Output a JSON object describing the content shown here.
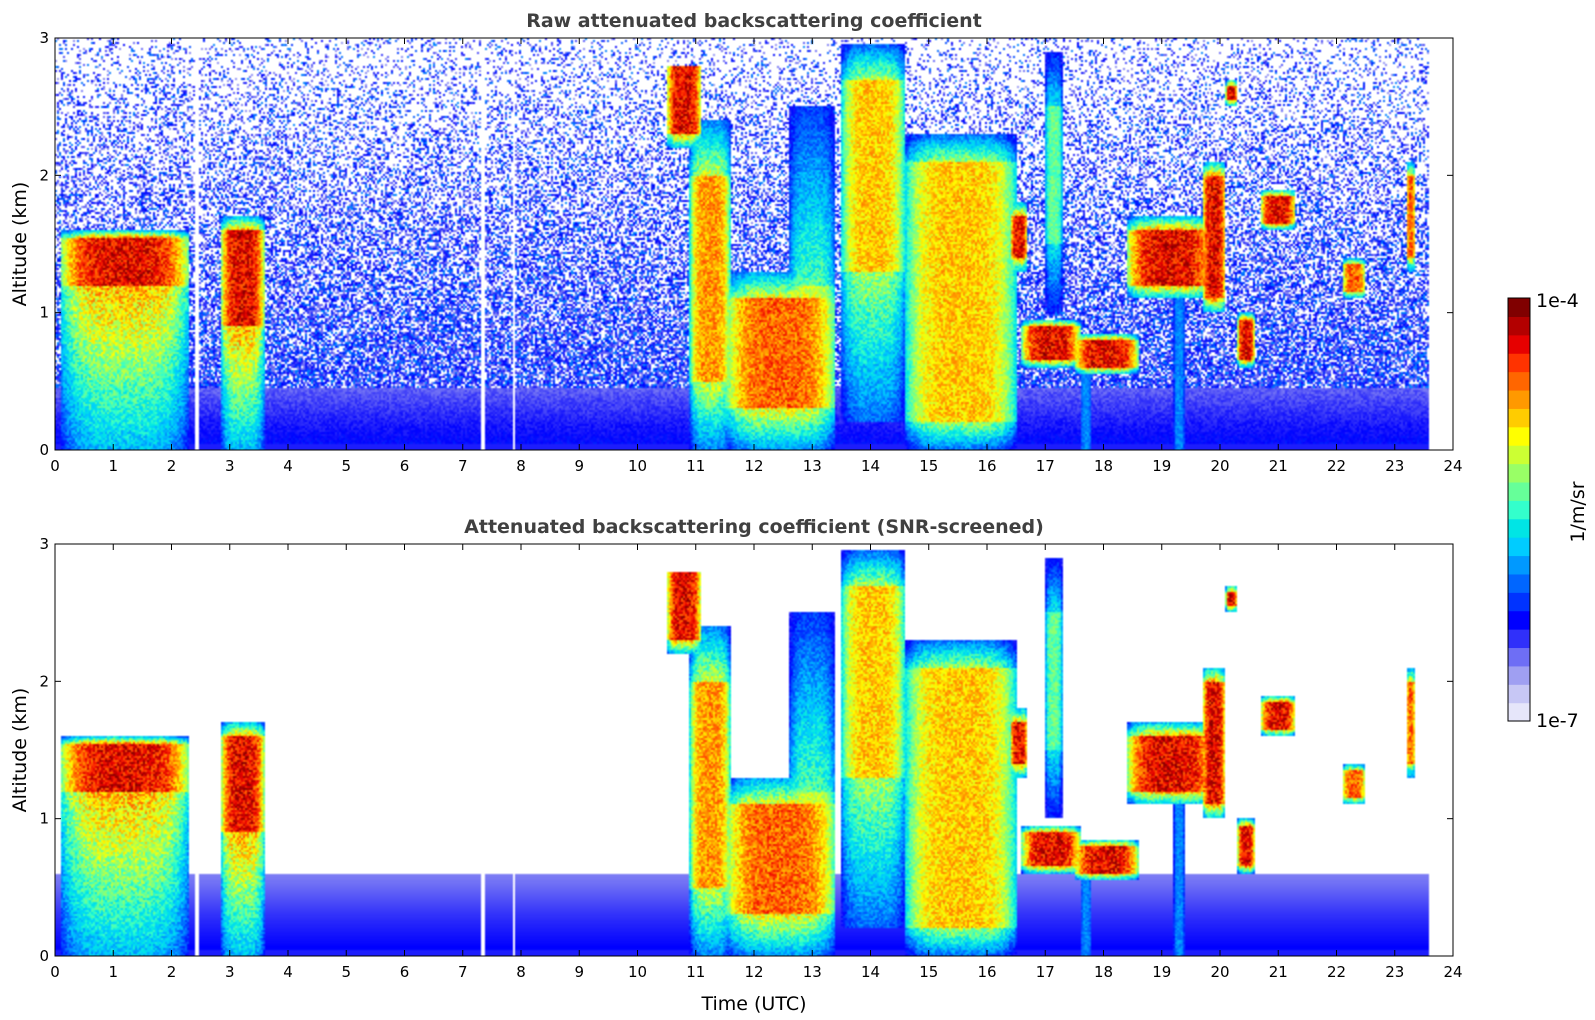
{
  "chart_data": [
    {
      "type": "heatmap",
      "title": "Raw attenuated backscattering coefficient",
      "xlabel": "",
      "ylabel": "Altitude (km)",
      "xlim": [
        0,
        24
      ],
      "ylim": [
        0,
        3
      ],
      "x_ticks": [
        "0",
        "1",
        "2",
        "3",
        "4",
        "5",
        "6",
        "7",
        "8",
        "9",
        "10",
        "11",
        "12",
        "13",
        "14",
        "15",
        "16",
        "17",
        "18",
        "19",
        "20",
        "21",
        "22",
        "23",
        "24"
      ],
      "y_ticks": [
        "0",
        "1",
        "2",
        "3"
      ],
      "data_end_hour": 23.6,
      "gap_hours": [
        2.45,
        7.35,
        7.88
      ],
      "background": "noise",
      "features": [
        {
          "x0": 0.1,
          "x1": 2.3,
          "y0": 0.0,
          "y1": 1.6,
          "core": [
            1.2,
            1.55
          ],
          "level": 1.0
        },
        {
          "x0": 2.85,
          "x1": 3.6,
          "y0": 0.0,
          "y1": 1.7,
          "core": [
            0.9,
            1.6
          ],
          "level": 1.0
        },
        {
          "x0": 10.5,
          "x1": 11.1,
          "y0": 2.2,
          "y1": 2.8,
          "core": [
            2.3,
            2.8
          ],
          "level": 1.0
        },
        {
          "x0": 10.9,
          "x1": 11.6,
          "y0": 0.0,
          "y1": 2.4,
          "core": [
            0.5,
            2.0
          ],
          "level": 0.85
        },
        {
          "x0": 11.5,
          "x1": 13.4,
          "y0": 0.0,
          "y1": 1.3,
          "core": [
            0.3,
            1.1
          ],
          "level": 0.9
        },
        {
          "x0": 12.6,
          "x1": 13.4,
          "y0": 0.0,
          "y1": 2.5,
          "core": [
            0.4,
            1.2
          ],
          "level": 0.7
        },
        {
          "x0": 13.5,
          "x1": 14.6,
          "y0": 0.2,
          "y1": 2.95,
          "core": [
            1.3,
            2.7
          ],
          "level": 0.8
        },
        {
          "x0": 14.6,
          "x1": 16.5,
          "y0": 0.0,
          "y1": 2.3,
          "core": [
            0.2,
            2.1
          ],
          "level": 0.8
        },
        {
          "x0": 16.4,
          "x1": 16.7,
          "y0": 1.3,
          "y1": 1.8,
          "core": [
            1.4,
            1.7
          ],
          "level": 1.0
        },
        {
          "x0": 16.6,
          "x1": 17.6,
          "y0": 0.6,
          "y1": 0.95,
          "core": [
            0.65,
            0.9
          ],
          "level": 1.0
        },
        {
          "x0": 17.5,
          "x1": 18.6,
          "y0": 0.55,
          "y1": 0.85,
          "core": [
            0.6,
            0.8
          ],
          "level": 1.0
        },
        {
          "x0": 18.4,
          "x1": 19.9,
          "y0": 1.1,
          "y1": 1.7,
          "core": [
            1.2,
            1.6
          ],
          "level": 1.0
        },
        {
          "x0": 19.7,
          "x1": 20.1,
          "y0": 1.0,
          "y1": 2.1,
          "core": [
            1.1,
            2.0
          ],
          "level": 1.0
        },
        {
          "x0": 20.3,
          "x1": 20.6,
          "y0": 0.6,
          "y1": 1.0,
          "core": [
            0.65,
            0.95
          ],
          "level": 1.0
        },
        {
          "x0": 20.1,
          "x1": 20.3,
          "y0": 2.5,
          "y1": 2.7,
          "core": [
            2.55,
            2.65
          ],
          "level": 1.0
        },
        {
          "x0": 20.7,
          "x1": 21.3,
          "y0": 1.6,
          "y1": 1.9,
          "core": [
            1.65,
            1.85
          ],
          "level": 1.0
        },
        {
          "x0": 22.1,
          "x1": 22.5,
          "y0": 1.1,
          "y1": 1.4,
          "core": [
            1.15,
            1.35
          ],
          "level": 0.9
        },
        {
          "x0": 23.2,
          "x1": 23.35,
          "y0": 1.3,
          "y1": 2.1,
          "core": [
            1.4,
            2.0
          ],
          "level": 0.9
        },
        {
          "x0": 17.0,
          "x1": 17.3,
          "y0": 1.0,
          "y1": 2.9,
          "core": [
            1.5,
            2.5
          ],
          "level": 0.6
        },
        {
          "x0": 17.6,
          "x1": 17.8,
          "y0": 0.0,
          "y1": 0.7,
          "core": [
            0.0,
            0.0
          ],
          "level": 0.35
        },
        {
          "x0": 19.2,
          "x1": 19.4,
          "y0": 0.0,
          "y1": 1.3,
          "core": [
            0.0,
            0.0
          ],
          "level": 0.35
        }
      ]
    },
    {
      "type": "heatmap",
      "title": "Attenuated backscattering coefficient (SNR-screened)",
      "xlabel": "Time (UTC)",
      "ylabel": "Altitude (km)",
      "xlim": [
        0,
        24
      ],
      "ylim": [
        0,
        3
      ],
      "x_ticks": [
        "0",
        "1",
        "2",
        "3",
        "4",
        "5",
        "6",
        "7",
        "8",
        "9",
        "10",
        "11",
        "12",
        "13",
        "14",
        "15",
        "16",
        "17",
        "18",
        "19",
        "20",
        "21",
        "22",
        "23",
        "24"
      ],
      "y_ticks": [
        "0",
        "1",
        "2",
        "3"
      ],
      "data_end_hour": 23.6,
      "gap_hours": [
        2.45,
        7.35,
        7.88
      ],
      "background": "screened"
    }
  ],
  "colorbar": {
    "label": "1/m/sr",
    "max_label": "1e-4",
    "min_label": "1e-7",
    "colors": [
      "#e6e6fa",
      "#c7c7f5",
      "#9f9ff2",
      "#6e6ef5",
      "#3030fa",
      "#0000ff",
      "#0033ff",
      "#0066ff",
      "#0099ff",
      "#00ccff",
      "#00e5e5",
      "#33ffcc",
      "#66ff99",
      "#99ff66",
      "#ccff33",
      "#ffff00",
      "#ffcc00",
      "#ff9900",
      "#ff6600",
      "#ff3300",
      "#e60000",
      "#b30000",
      "#800000"
    ]
  }
}
